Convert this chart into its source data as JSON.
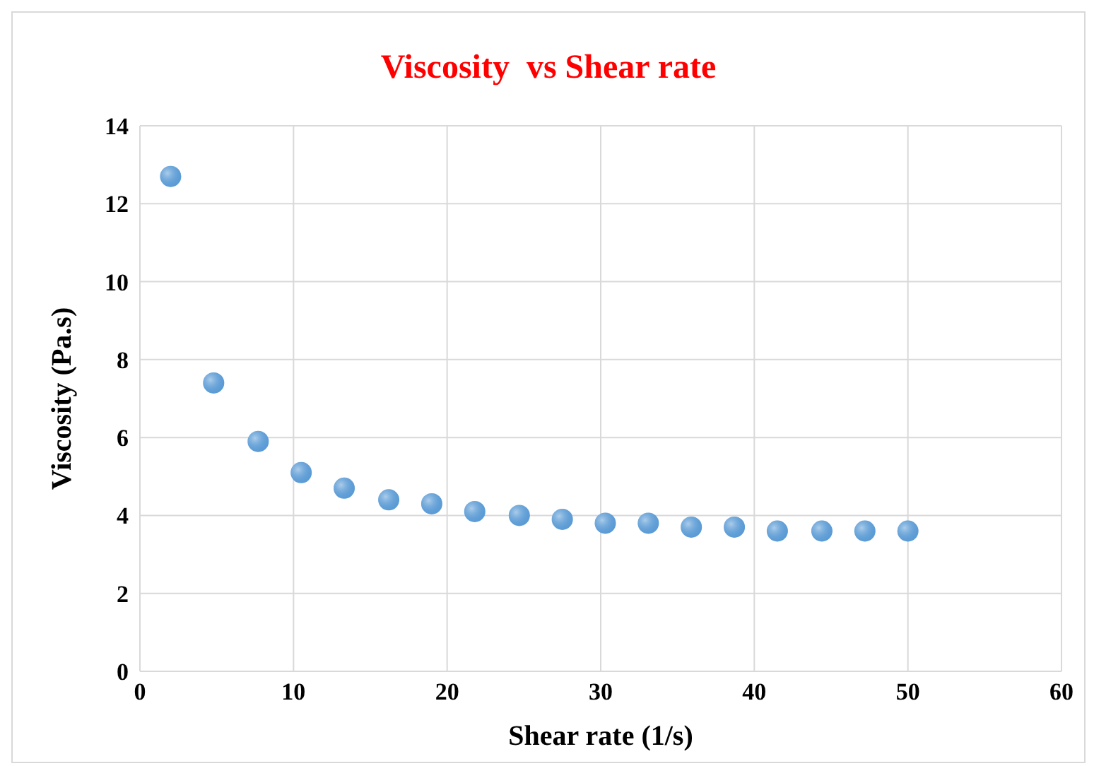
{
  "chart_data": {
    "type": "scatter",
    "title": "Viscosity  vs Shear rate",
    "xlabel": "Shear rate (1/s)",
    "ylabel": "Viscosity (Pa.s)",
    "x": [
      2,
      4.8,
      7.7,
      10.5,
      13.3,
      16.2,
      19,
      21.8,
      24.7,
      27.5,
      30.3,
      33.1,
      35.9,
      38.7,
      41.5,
      44.4,
      47.2,
      50
    ],
    "series": [
      {
        "color": "#5b9bd5",
        "values": [
          12.7,
          7.4,
          5.9,
          5.1,
          4.7,
          4.4,
          4.3,
          4.1,
          4.0,
          3.9,
          3.8,
          3.8,
          3.7,
          3.7,
          3.6,
          3.6,
          3.6,
          3.6
        ]
      }
    ],
    "xlim": [
      0,
      60
    ],
    "xticks": [
      0,
      10,
      20,
      30,
      40,
      50,
      60
    ],
    "ylim": [
      0,
      14
    ],
    "yticks": [
      0,
      2,
      4,
      6,
      8,
      10,
      12,
      14
    ],
    "grid": true,
    "marker": "circle",
    "legend": false
  }
}
